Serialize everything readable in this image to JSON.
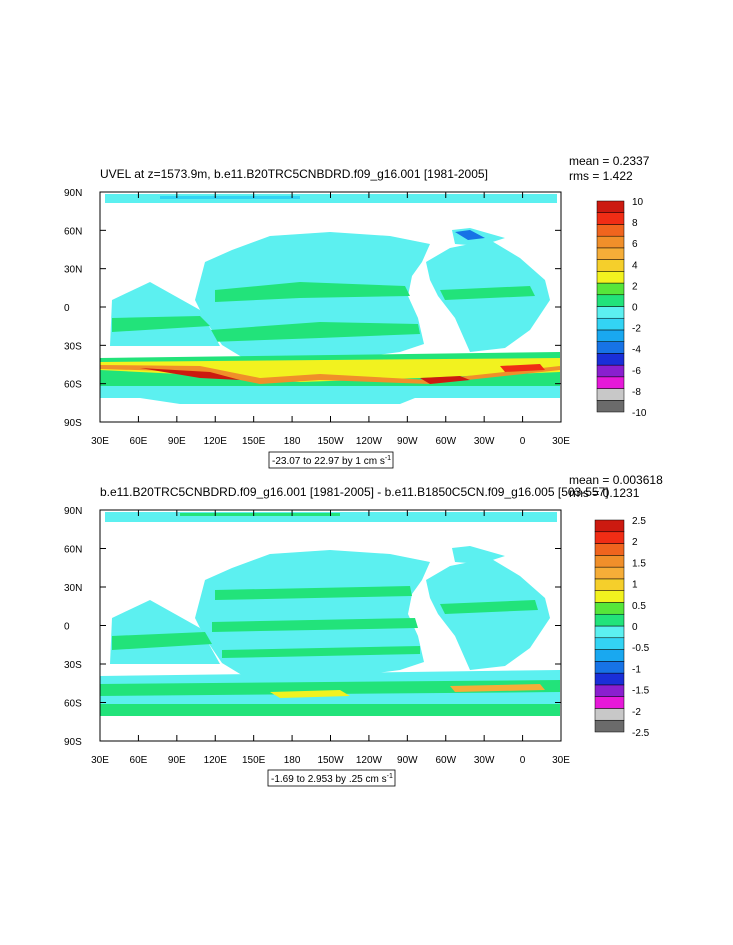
{
  "panels": [
    {
      "title": "UVEL at z=1573.9m, b.e11.B20TRC5CNBDRD.f09_g16.001 [1981-2005]",
      "mean_label": "mean = 0.2337",
      "rms_label": "rms = 1.422",
      "contour_label": "-23.07 to 22.97 by 1 cm s",
      "contour_unit_exp": "-1",
      "colorbar_labels": [
        "10",
        "8",
        "6",
        "4",
        "2",
        "0",
        "-2",
        "-4",
        "-6",
        "-8",
        "-10"
      ]
    },
    {
      "title": "b.e11.B20TRC5CNBDRD.f09_g16.001 [1981-2005] - b.e11.B1850C5CN.f09_g16.005 [503-557]",
      "mean_label": "mean = 0.003618",
      "rms_label": "rms = 0.1231",
      "contour_label": "-1.69 to 2.953 by .25 cm s",
      "contour_unit_exp": "-1",
      "colorbar_labels": [
        "2.5",
        "2",
        "1.5",
        "1",
        "0.5",
        "0",
        "-0.5",
        "-1",
        "-1.5",
        "-2",
        "-2.5"
      ]
    }
  ],
  "x_ticks": [
    "30E",
    "60E",
    "90E",
    "120E",
    "150E",
    "180",
    "150W",
    "120W",
    "90W",
    "60W",
    "30W",
    "0",
    "30E"
  ],
  "y_ticks": [
    "90N",
    "60N",
    "30N",
    "0",
    "30S",
    "60S",
    "90S"
  ],
  "palette": [
    "#6b6b6b",
    "#c8c8c8",
    "#e619d9",
    "#8a1fcf",
    "#1a2fd8",
    "#1773e6",
    "#19a8f0",
    "#33d4f4",
    "#5cf0f0",
    "#22e37a",
    "#56e63a",
    "#f2f21f",
    "#f5cf2b",
    "#f5ad38",
    "#f08f2a",
    "#f0641e",
    "#f02d15",
    "#cc1a10"
  ]
}
